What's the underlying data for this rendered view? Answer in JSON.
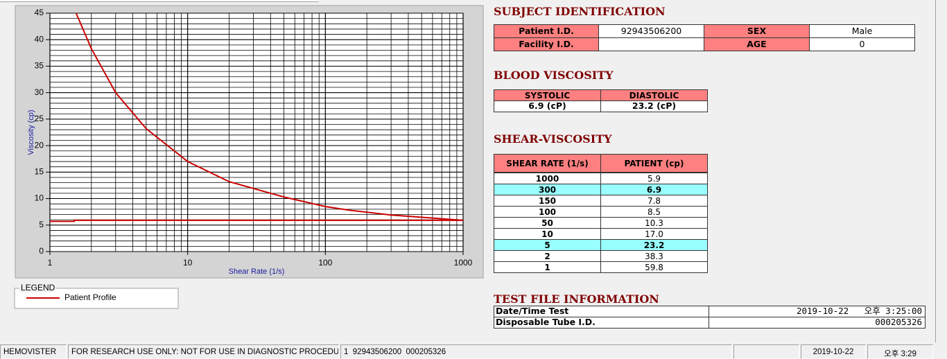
{
  "chart_data": {
    "type": "line",
    "xscale": "log",
    "grid": true,
    "xlabel": "Shear Rate (1/s)",
    "ylabel": "Viscosity (cp)",
    "xlim": [
      1,
      1000
    ],
    "ylim": [
      0,
      45
    ],
    "xticks": [
      1,
      10,
      100,
      1000
    ],
    "yticks": [
      0,
      5,
      10,
      15,
      20,
      25,
      30,
      35,
      40,
      45
    ],
    "legend_title": "LEGEND",
    "series": [
      {
        "name": "Patient Profile",
        "color": "#cc0000",
        "x": [
          1.55,
          2,
          3,
          5,
          10,
          20,
          50,
          100,
          150,
          300,
          1000
        ],
        "values": [
          45,
          38.3,
          30,
          23.2,
          17.0,
          13.2,
          10.3,
          8.5,
          7.8,
          6.9,
          5.9
        ]
      },
      {
        "color": "#cc0000",
        "x": [
          1,
          1.5,
          1.5,
          1000
        ],
        "values": [
          5.7,
          5.7,
          5.9,
          5.9
        ]
      }
    ]
  },
  "subject_identification": {
    "title": "SUBJECT IDENTIFICATION",
    "rows": [
      [
        "Patient I.D.",
        "92943506200",
        "SEX",
        "Male"
      ],
      [
        "Facility I.D.",
        null,
        "AGE",
        "0"
      ]
    ]
  },
  "blood_viscosity": {
    "title": "BLOOD VISCOSITY",
    "headers": [
      "SYSTOLIC",
      "DIASTOLIC"
    ],
    "values": [
      "6.9 (cP)",
      "23.2 (cP)"
    ]
  },
  "shear_viscosity": {
    "title": "SHEAR-VISCOSITY",
    "headers": [
      "SHEAR RATE (1/s)",
      "PATIENT (cp)"
    ],
    "highlight_rows": [
      1,
      6
    ],
    "highlight_color": "#99ffff",
    "rows": [
      [
        "1000",
        "5.9"
      ],
      [
        "300",
        "6.9"
      ],
      [
        "150",
        "7.8"
      ],
      [
        "100",
        "8.5"
      ],
      [
        "50",
        "10.3"
      ],
      [
        "10",
        "17.0"
      ],
      [
        "5",
        "23.2"
      ],
      [
        "2",
        "38.3"
      ],
      [
        "1",
        "59.8"
      ]
    ]
  },
  "test_file_information": {
    "title": "TEST FILE INFORMATION",
    "rows": [
      [
        "Date/Time Test",
        "2019-10-22   오후 3:25:00"
      ],
      [
        "Disposable Tube I.D.",
        "000205326"
      ]
    ]
  },
  "status_bar": [
    "HEMOVISTER",
    "FOR RESEARCH USE ONLY: NOT FOR USE IN DIAGNOSTIC PROCEDURES",
    "1  92943506200  000205326",
    "2019-10-22",
    "오후 3:29"
  ]
}
